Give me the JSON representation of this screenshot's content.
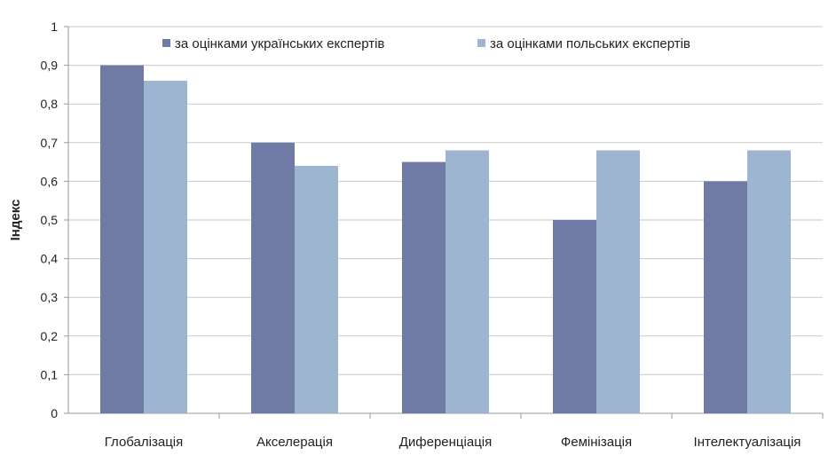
{
  "chart_data": {
    "type": "bar",
    "title": "",
    "xlabel": "",
    "ylabel": "Індекс",
    "ylim": [
      0,
      1
    ],
    "yticks": [
      "0",
      "0,1",
      "0,2",
      "0,3",
      "0,4",
      "0,5",
      "0,6",
      "0,7",
      "0,8",
      "0,9",
      "1"
    ],
    "grid": true,
    "legend_position": "top",
    "categories": [
      "Глобалізація",
      "Акселерація",
      "Диференціація",
      "Фемінізація",
      "Інтелектуалізація"
    ],
    "series": [
      {
        "name": "за оцінками українських експертів",
        "color": "#6f7ba5",
        "values": [
          0.9,
          0.7,
          0.65,
          0.5,
          0.6
        ]
      },
      {
        "name": "за оцінками польських експертів",
        "color": "#9eb5d1",
        "values": [
          0.86,
          0.64,
          0.68,
          0.68,
          0.68
        ]
      }
    ]
  }
}
